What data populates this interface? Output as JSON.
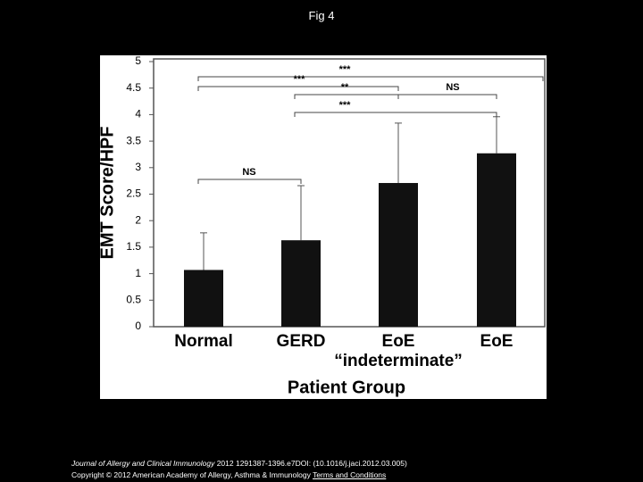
{
  "page_title": "Fig 4",
  "chart_data": {
    "type": "bar",
    "x_label": "Patient Group",
    "y_label": "EMT Score/HPF",
    "categories": [
      "Normal",
      "GERD",
      "EoE",
      "EoE"
    ],
    "category_notes": [
      null,
      null,
      "“indeterminate”",
      null
    ],
    "values": [
      1.07,
      1.63,
      2.71,
      3.27
    ],
    "errors": [
      0.7,
      1.03,
      1.13,
      0.69
    ],
    "color": "#111111",
    "ylim": [
      0,
      5
    ],
    "yticks": [
      0,
      0.5,
      1,
      1.5,
      2,
      2.5,
      3,
      3.5,
      4,
      4.5,
      5
    ],
    "significance_labels": [
      "***",
      "***",
      "**",
      "NS",
      "***",
      "NS"
    ]
  },
  "footer": {
    "journal": "Journal of Allergy and Clinical Immunology",
    "citation": " 2012 1291387-1396.e7DOI: (10.1016/j.jaci.2012.03.005)",
    "copyright": "Copyright © 2012 American Academy of Allergy, Asthma & Immunology ",
    "link": "Terms and Conditions"
  }
}
